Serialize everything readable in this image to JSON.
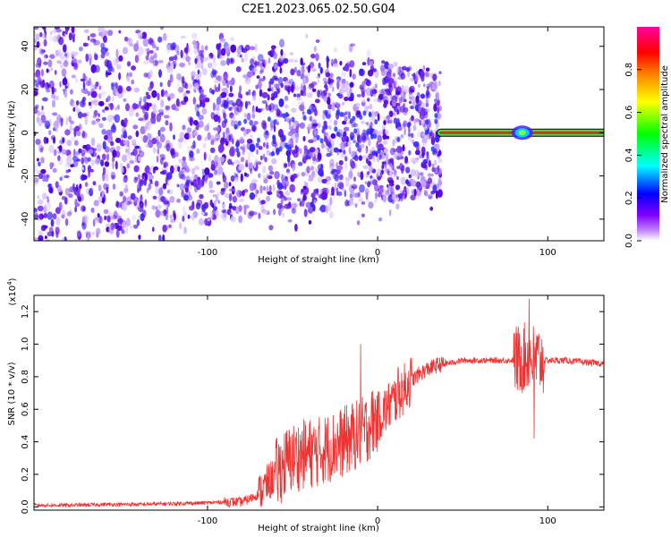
{
  "figure": {
    "title": "C2E1.2023.065.02.50.G04"
  },
  "chart_data": [
    {
      "type": "heatmap",
      "panel": "spectrogram",
      "xlabel": "Height of straight line (km)",
      "ylabel": "Frequency (Hz)",
      "xlim": [
        -202,
        133
      ],
      "ylim": [
        -50,
        49
      ],
      "x_ticks": [
        "-100",
        "0",
        "100"
      ],
      "y_ticks": [
        "40",
        "20",
        "0",
        "-20",
        "-40"
      ],
      "x_tick_values": [
        -100,
        0,
        100
      ],
      "y_tick_values": [
        40,
        20,
        0,
        -20,
        -40
      ],
      "scatter_region": {
        "x_range": [
          -202,
          37
        ],
        "freq_spread_start": 49,
        "freq_spread_end": 28,
        "dominant_color": "#5500e0"
      },
      "line_segment": {
        "x_range": [
          37,
          133
        ],
        "frequency": 0,
        "outer_color": "#33ee33",
        "inner_color": "#ee2222"
      },
      "blob": {
        "x": 85,
        "frequency": 0
      },
      "colorbar": {
        "label": "Normalized spectral amplitude",
        "range": [
          0,
          1
        ],
        "ticks": [
          "0.0",
          "0.2",
          "0.4",
          "0.6",
          "0.8"
        ],
        "tick_values": [
          0,
          0.2,
          0.4,
          0.6,
          0.8
        ],
        "colormap": [
          "#ffffff",
          "#8000ff",
          "#0000ff",
          "#00ffff",
          "#00ff00",
          "#ffff00",
          "#ff8000",
          "#ff0000",
          "#ff00a0"
        ]
      }
    },
    {
      "type": "line",
      "panel": "snr",
      "xlabel": "Height of straight line (km)",
      "ylabel": "SNR (10 * v/v)",
      "scale_label": "(x10",
      "scale_exponent": "4",
      "scale_suffix": ")",
      "xlim": [
        -202,
        133
      ],
      "ylim": [
        -0.02,
        1.3
      ],
      "x_ticks": [
        "-100",
        "0",
        "100"
      ],
      "y_ticks": [
        "0.0",
        "0.2",
        "0.4",
        "0.6",
        "0.8",
        "1.0",
        "1.2"
      ],
      "x_tick_values": [
        -100,
        0,
        100
      ],
      "y_tick_values": [
        0,
        0.2,
        0.4,
        0.6,
        0.8,
        1.0,
        1.2
      ],
      "line_color": "#ee3333",
      "series": [
        {
          "x": [
            -202,
            -180,
            -160,
            -140,
            -120,
            -100,
            -90,
            -80,
            -75,
            -70,
            -65,
            -60,
            -55,
            -50,
            -45,
            -40,
            -35,
            -30,
            -25,
            -20,
            -15,
            -10,
            -5,
            0,
            5,
            10,
            15,
            20,
            25,
            30,
            35,
            40,
            45,
            50,
            60,
            70,
            80,
            85,
            88,
            90,
            92,
            95,
            100,
            110,
            120,
            133
          ],
          "values": [
            0.01,
            0.01,
            0.015,
            0.015,
            0.02,
            0.025,
            0.03,
            0.03,
            0.05,
            0.08,
            0.14,
            0.2,
            0.26,
            0.3,
            0.32,
            0.33,
            0.34,
            0.36,
            0.38,
            0.4,
            0.43,
            0.45,
            0.5,
            0.55,
            0.6,
            0.66,
            0.72,
            0.78,
            0.82,
            0.85,
            0.87,
            0.88,
            0.89,
            0.9,
            0.9,
            0.9,
            0.9,
            0.91,
            0.92,
            0.92,
            0.91,
            0.9,
            0.9,
            0.9,
            0.89,
            0.88
          ]
        }
      ],
      "peaks": [
        {
          "x": -10,
          "value": 1.0
        },
        {
          "x": 12,
          "value": 0.86
        },
        {
          "x": 89,
          "value": 1.28
        },
        {
          "x": 92,
          "value": 0.42
        }
      ]
    }
  ]
}
